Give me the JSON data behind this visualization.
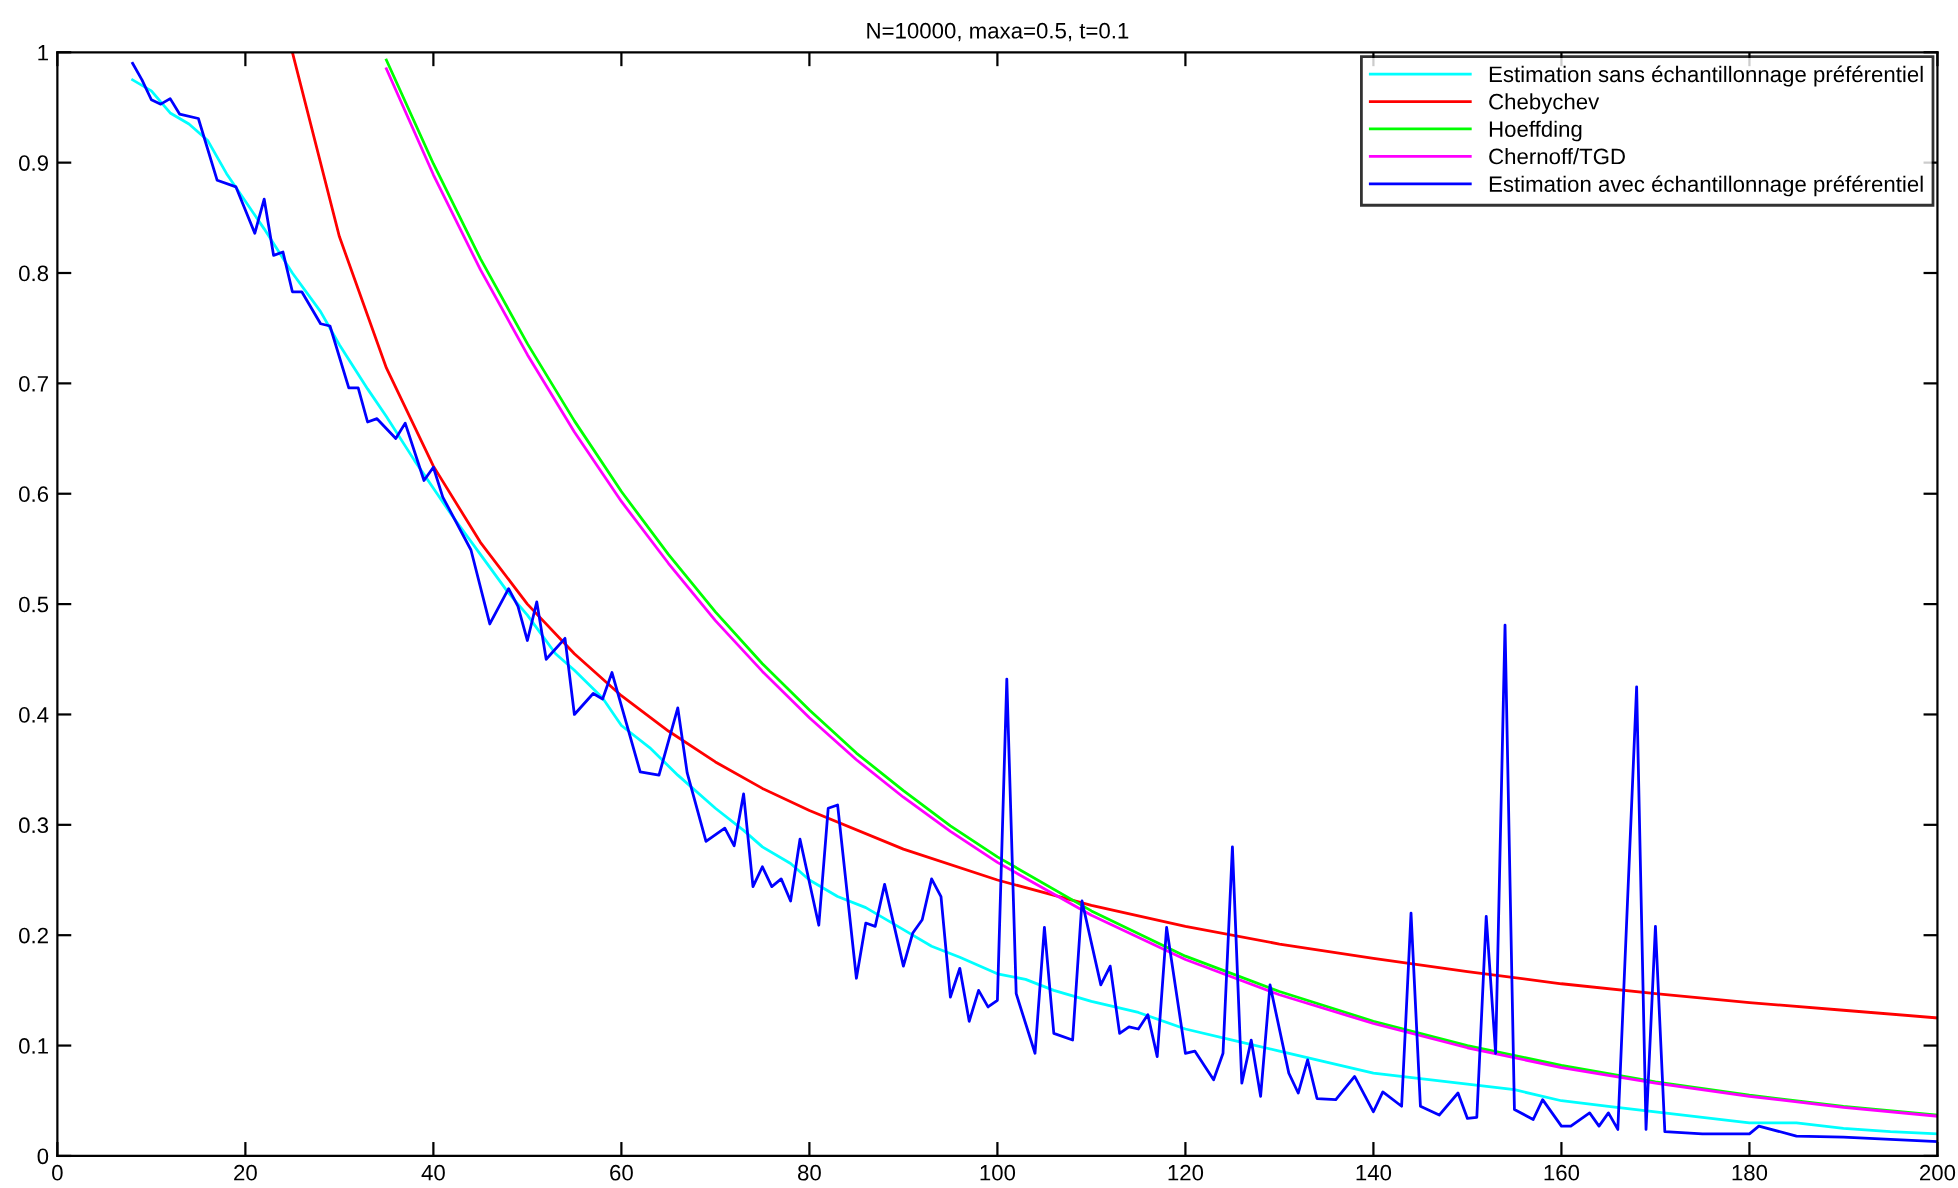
{
  "chart_data": {
    "type": "line",
    "title": "N=10000, maxa=0.5, t=0.1",
    "xlim": [
      0,
      200
    ],
    "xticks": [
      0,
      20,
      40,
      60,
      80,
      100,
      120,
      140,
      160,
      180,
      200
    ],
    "ylim": [
      0,
      1
    ],
    "yticks": [
      0,
      0.1,
      0.2,
      0.3,
      0.4,
      0.5,
      0.6,
      0.7,
      0.8,
      0.9,
      1
    ],
    "grid": false,
    "legend": "top right",
    "marker": "none",
    "line_style": "solid",
    "series": [
      {
        "name": "Estimation sans échantillonnage préférentiel",
        "color": "#00ffff",
        "x": [
          8,
          10,
          12,
          14,
          16,
          18,
          20,
          22,
          25,
          28,
          30,
          33,
          35,
          38,
          40,
          42,
          45,
          48,
          50,
          53,
          55,
          58,
          60,
          63,
          66,
          70,
          73,
          75,
          78,
          80,
          83,
          86,
          90,
          93,
          96,
          100,
          103,
          106,
          110,
          115,
          120,
          125,
          130,
          135,
          140,
          145,
          150,
          155,
          160,
          165,
          170,
          175,
          180,
          185,
          190,
          195,
          200
        ],
        "values": [
          0.975,
          0.965,
          0.945,
          0.935,
          0.92,
          0.89,
          0.865,
          0.84,
          0.8,
          0.765,
          0.735,
          0.695,
          0.67,
          0.63,
          0.605,
          0.58,
          0.545,
          0.51,
          0.49,
          0.455,
          0.44,
          0.415,
          0.39,
          0.37,
          0.345,
          0.315,
          0.295,
          0.28,
          0.265,
          0.25,
          0.235,
          0.225,
          0.205,
          0.19,
          0.18,
          0.165,
          0.16,
          0.15,
          0.14,
          0.13,
          0.115,
          0.105,
          0.095,
          0.085,
          0.075,
          0.07,
          0.065,
          0.06,
          0.05,
          0.045,
          0.04,
          0.035,
          0.03,
          0.03,
          0.025,
          0.022,
          0.02
        ]
      },
      {
        "name": "Chebychev",
        "color": "#ff0000",
        "x": [
          25,
          30,
          35,
          40,
          45,
          50,
          55,
          60,
          65,
          70,
          75,
          80,
          90,
          100,
          110,
          120,
          130,
          140,
          150,
          160,
          170,
          180,
          190,
          200
        ],
        "values": [
          1,
          0.833,
          0.714,
          0.625,
          0.556,
          0.5,
          0.455,
          0.417,
          0.385,
          0.357,
          0.333,
          0.313,
          0.278,
          0.25,
          0.227,
          0.208,
          0.192,
          0.179,
          0.167,
          0.156,
          0.147,
          0.139,
          0.132,
          0.125
        ]
      },
      {
        "name": "Hoeffding",
        "color": "#00ff00",
        "x": [
          35,
          40,
          45,
          50,
          55,
          60,
          65,
          70,
          75,
          80,
          85,
          90,
          95,
          100,
          110,
          120,
          130,
          140,
          150,
          160,
          170,
          180,
          190,
          200
        ],
        "values": [
          0.993,
          0.899,
          0.813,
          0.736,
          0.666,
          0.602,
          0.545,
          0.493,
          0.446,
          0.404,
          0.365,
          0.331,
          0.299,
          0.271,
          0.222,
          0.181,
          0.149,
          0.122,
          0.1,
          0.082,
          0.067,
          0.055,
          0.045,
          0.037
        ]
      },
      {
        "name": "Chernoff/TGD",
        "color": "#ff00ff",
        "x": [
          35,
          40,
          45,
          50,
          55,
          60,
          65,
          70,
          75,
          80,
          85,
          90,
          95,
          100,
          110,
          120,
          130,
          140,
          150,
          160,
          170,
          180,
          190,
          200
        ],
        "values": [
          0.985,
          0.889,
          0.803,
          0.726,
          0.656,
          0.593,
          0.537,
          0.485,
          0.439,
          0.397,
          0.359,
          0.325,
          0.294,
          0.266,
          0.218,
          0.178,
          0.146,
          0.12,
          0.098,
          0.08,
          0.066,
          0.054,
          0.044,
          0.036
        ]
      },
      {
        "name": "Estimation avec échantillonnage préférentiel",
        "color": "#0000ff",
        "x": [
          8,
          9,
          10,
          11,
          12,
          13,
          15,
          17,
          19,
          21,
          22,
          23,
          24,
          25,
          26,
          28,
          29,
          31,
          32,
          33,
          34,
          36,
          37,
          39,
          40,
          41,
          44,
          46,
          48,
          49,
          50,
          51,
          52,
          54,
          55,
          57,
          58,
          59,
          62,
          64,
          66,
          67,
          69,
          71,
          72,
          73,
          74,
          75,
          76,
          77,
          78,
          79,
          81,
          82,
          83,
          85,
          86,
          87,
          88,
          90,
          91,
          92,
          93,
          94,
          95,
          96,
          97,
          98,
          99,
          100,
          101,
          102,
          104,
          105,
          106,
          108,
          109,
          111,
          112,
          113,
          114,
          115,
          116,
          117,
          118,
          120,
          121,
          123,
          124,
          125,
          126,
          127,
          128,
          129,
          131,
          132,
          133,
          134,
          136,
          138,
          140,
          141,
          143,
          144,
          145,
          147,
          149,
          150,
          151,
          152,
          153,
          154,
          155,
          157,
          158,
          160,
          161,
          163,
          164,
          165,
          166,
          168,
          169,
          170,
          171,
          175,
          180,
          181,
          185,
          190,
          195,
          200
        ],
        "values": [
          0.99,
          0.975,
          0.957,
          0.953,
          0.958,
          0.944,
          0.94,
          0.884,
          0.878,
          0.836,
          0.867,
          0.816,
          0.819,
          0.783,
          0.783,
          0.754,
          0.752,
          0.696,
          0.696,
          0.665,
          0.668,
          0.65,
          0.664,
          0.612,
          0.624,
          0.597,
          0.549,
          0.482,
          0.514,
          0.498,
          0.467,
          0.502,
          0.45,
          0.469,
          0.4,
          0.419,
          0.414,
          0.438,
          0.348,
          0.345,
          0.406,
          0.347,
          0.285,
          0.297,
          0.281,
          0.328,
          0.244,
          0.262,
          0.244,
          0.251,
          0.231,
          0.287,
          0.209,
          0.315,
          0.318,
          0.161,
          0.211,
          0.208,
          0.246,
          0.172,
          0.202,
          0.214,
          0.251,
          0.235,
          0.144,
          0.17,
          0.122,
          0.15,
          0.135,
          0.141,
          0.432,
          0.147,
          0.093,
          0.207,
          0.111,
          0.105,
          0.231,
          0.155,
          0.172,
          0.111,
          0.117,
          0.115,
          0.128,
          0.09,
          0.207,
          0.093,
          0.095,
          0.069,
          0.093,
          0.28,
          0.066,
          0.105,
          0.054,
          0.155,
          0.075,
          0.057,
          0.087,
          0.052,
          0.051,
          0.072,
          0.04,
          0.058,
          0.045,
          0.22,
          0.045,
          0.037,
          0.057,
          0.034,
          0.035,
          0.217,
          0.093,
          0.481,
          0.042,
          0.033,
          0.051,
          0.027,
          0.027,
          0.039,
          0.027,
          0.039,
          0.024,
          0.425,
          0.024,
          0.208,
          0.022,
          0.02,
          0.02,
          0.027,
          0.018,
          0.017,
          0.015,
          0.013
        ]
      }
    ]
  }
}
